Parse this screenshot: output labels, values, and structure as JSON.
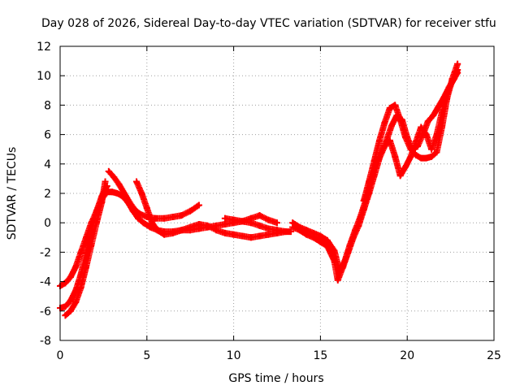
{
  "chart_data": {
    "type": "scatter",
    "title": "Day 028 of 2026, Sidereal Day-to-day VTEC variation (SDTVAR) for receiver stfu",
    "xlabel": "GPS time / hours",
    "ylabel": "SDTVAR / TECUs",
    "xlim": [
      0,
      25
    ],
    "ylim": [
      -8,
      12
    ],
    "xticks": [
      "0",
      "5",
      "10",
      "15",
      "20",
      "25"
    ],
    "yticks": [
      "-8",
      "-6",
      "-4",
      "-2",
      "0",
      "2",
      "4",
      "6",
      "8",
      "10",
      "12"
    ],
    "grid": true,
    "marker": "plus",
    "color": "#ff0000",
    "series": [
      {
        "name": "track-a",
        "x": [
          0.0,
          0.3,
          0.6,
          0.9,
          1.2,
          1.5,
          1.8,
          2.1,
          2.4,
          2.7,
          3.0,
          3.3,
          3.6,
          3.9,
          4.2,
          4.5,
          4.8,
          5.2,
          5.6,
          6.0,
          6.5,
          7.0,
          7.5,
          8.0,
          8.5,
          9.0,
          9.5,
          10.0,
          10.5,
          11.0,
          11.5,
          12.0,
          12.5,
          13.0,
          13.3
        ],
        "y": [
          -4.3,
          -4.1,
          -3.7,
          -3.0,
          -2.0,
          -1.0,
          0.0,
          0.8,
          1.6,
          2.1,
          2.1,
          2.0,
          1.8,
          1.4,
          0.8,
          0.3,
          0.0,
          -0.3,
          -0.5,
          -0.6,
          -0.6,
          -0.5,
          -0.5,
          -0.4,
          -0.3,
          -0.2,
          -0.1,
          0.0,
          0.1,
          0.0,
          -0.2,
          -0.4,
          -0.5,
          -0.6,
          -0.6
        ]
      },
      {
        "name": "track-b",
        "x": [
          0.0,
          0.3,
          0.6,
          0.9,
          1.2,
          1.5,
          1.8,
          2.1,
          2.4,
          2.7
        ],
        "y": [
          -5.8,
          -5.7,
          -5.3,
          -4.6,
          -3.5,
          -2.0,
          -0.5,
          0.8,
          1.8,
          2.5
        ]
      },
      {
        "name": "track-c",
        "x": [
          0.3,
          0.6,
          0.9,
          1.2,
          1.5,
          1.8,
          2.1,
          2.4,
          2.6
        ],
        "y": [
          -6.3,
          -6.0,
          -5.4,
          -4.4,
          -3.0,
          -1.5,
          0.0,
          1.4,
          2.8
        ]
      },
      {
        "name": "track-d",
        "x": [
          2.8,
          3.1,
          3.4,
          3.7,
          4.0,
          4.3,
          4.6,
          5.0,
          5.5,
          6.0,
          6.5,
          7.0,
          7.5,
          8.0
        ],
        "y": [
          3.5,
          3.1,
          2.6,
          2.0,
          1.4,
          0.9,
          0.6,
          0.4,
          0.3,
          0.3,
          0.4,
          0.5,
          0.8,
          1.2
        ]
      },
      {
        "name": "track-e",
        "x": [
          4.4,
          4.7,
          5.0,
          5.3,
          5.6,
          6.0,
          6.5,
          7.0,
          7.5,
          8.0,
          8.5,
          9.0,
          9.5,
          10.0,
          10.5,
          11.0,
          11.5,
          12.0,
          12.5,
          13.0
        ],
        "y": [
          2.8,
          2.0,
          1.0,
          0.0,
          -0.5,
          -0.8,
          -0.7,
          -0.5,
          -0.3,
          -0.1,
          -0.2,
          -0.5,
          -0.7,
          -0.8,
          -0.9,
          -1.0,
          -0.9,
          -0.8,
          -0.7,
          -0.6
        ]
      },
      {
        "name": "track-f",
        "x": [
          9.5,
          10.0,
          10.5,
          11.0,
          11.5,
          12.0,
          12.5
        ],
        "y": [
          0.3,
          0.2,
          0.1,
          0.3,
          0.5,
          0.2,
          0.0
        ]
      },
      {
        "name": "track-g",
        "x": [
          13.4,
          13.8,
          14.2,
          14.6,
          15.0,
          15.4,
          15.8,
          16.1,
          16.4,
          16.7,
          17.0,
          17.3,
          17.6,
          17.9,
          18.2,
          18.5,
          18.8,
          19.1,
          19.4,
          19.7,
          20.0,
          20.3,
          20.6,
          20.9,
          21.2,
          21.5,
          21.8,
          22.1,
          22.4,
          22.7,
          22.9
        ],
        "y": [
          0.0,
          -0.3,
          -0.5,
          -0.7,
          -0.9,
          -1.2,
          -1.9,
          -3.3,
          -2.6,
          -1.5,
          -0.5,
          0.4,
          1.5,
          2.8,
          4.0,
          4.8,
          5.6,
          6.6,
          7.3,
          7.0,
          5.8,
          5.0,
          5.2,
          6.0,
          6.9,
          7.3,
          7.9,
          8.5,
          9.2,
          9.8,
          10.4
        ]
      },
      {
        "name": "track-h",
        "x": [
          13.4,
          13.8,
          14.2,
          14.6,
          15.0,
          15.4,
          15.8,
          16.0,
          16.3,
          16.6,
          16.9,
          17.2,
          17.5,
          17.8,
          18.1,
          18.4,
          18.7,
          19.0,
          19.3,
          19.6,
          19.9,
          20.2,
          20.5,
          20.8,
          21.1,
          21.4,
          21.7,
          22.0,
          22.3,
          22.6,
          22.9
        ],
        "y": [
          -0.3,
          -0.5,
          -0.8,
          -1.0,
          -1.3,
          -1.6,
          -2.6,
          -3.9,
          -3.0,
          -2.0,
          -1.0,
          -0.2,
          0.9,
          2.0,
          3.2,
          4.4,
          5.2,
          5.6,
          4.5,
          3.2,
          3.8,
          4.5,
          5.5,
          6.5,
          6.0,
          5.0,
          6.0,
          7.5,
          8.8,
          9.6,
          10.2
        ]
      },
      {
        "name": "track-i",
        "x": [
          17.5,
          17.8,
          18.1,
          18.4,
          18.7,
          19.0,
          19.3,
          19.6,
          19.9,
          20.2,
          20.5,
          20.8,
          21.1,
          21.4,
          21.7,
          22.0,
          22.3,
          22.6,
          22.9
        ],
        "y": [
          1.5,
          2.8,
          4.2,
          5.6,
          6.8,
          7.8,
          8.0,
          7.0,
          5.8,
          5.0,
          4.6,
          4.4,
          4.4,
          4.5,
          4.8,
          6.5,
          8.5,
          9.8,
          10.8
        ]
      }
    ]
  }
}
